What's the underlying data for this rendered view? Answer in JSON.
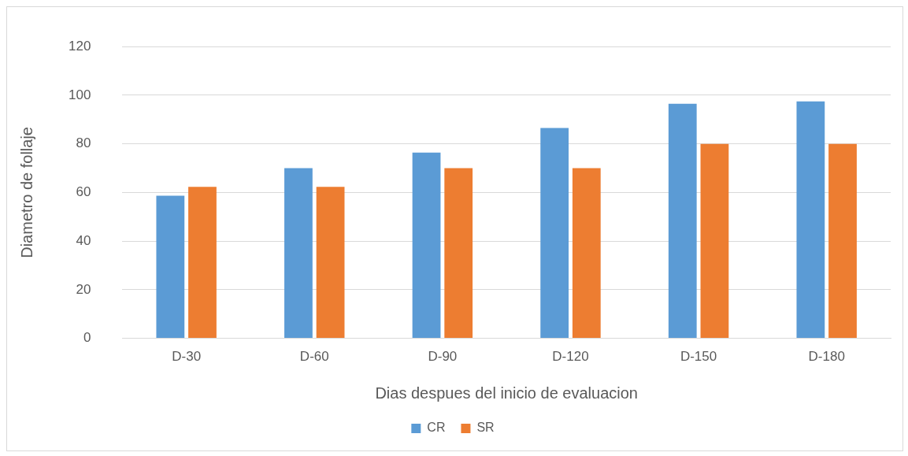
{
  "chart_data": {
    "type": "bar",
    "xlabel": "Dias despues del inicio de evaluacion",
    "ylabel": "Diametro de follaje",
    "categories": [
      "D-30",
      "D-60",
      "D-90",
      "D-120",
      "D-150",
      "D-180"
    ],
    "series": [
      {
        "name": "CR",
        "color": "#5b9bd5",
        "values": [
          58.7,
          70,
          76.4,
          86.5,
          96.5,
          97.5
        ]
      },
      {
        "name": "SR",
        "color": "#ed7d31",
        "values": [
          62.3,
          62.3,
          70,
          70,
          80,
          80
        ]
      }
    ],
    "ylim": [
      0,
      120
    ],
    "yticks": [
      0,
      20,
      40,
      60,
      80,
      100,
      120
    ],
    "grid": "y",
    "legend": "bottom"
  }
}
